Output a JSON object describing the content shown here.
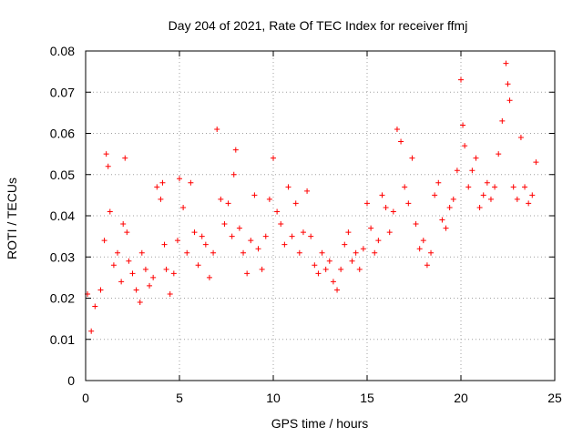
{
  "chart_data": {
    "type": "scatter",
    "title": "Day 204 of 2021, Rate Of TEC Index for receiver ffmj",
    "xlabel": "GPS time / hours",
    "ylabel": "ROTI / TECUs",
    "xlim": [
      0,
      25
    ],
    "ylim": [
      0,
      0.08
    ],
    "x_ticks": [
      "0",
      "5",
      "10",
      "15",
      "20",
      "25"
    ],
    "y_ticks": [
      "0",
      "0.01",
      "0.02",
      "0.03",
      "0.04",
      "0.05",
      "0.06",
      "0.07",
      "0.08"
    ],
    "grid": true,
    "marker": "+",
    "color": "#ff0000",
    "series": [
      {
        "x": [
          0.1,
          0.3,
          0.5,
          0.8,
          1.0,
          1.1,
          1.2,
          1.3,
          1.5,
          1.7,
          1.9,
          2.0,
          2.1,
          2.2,
          2.3,
          2.5,
          2.7,
          2.9,
          3.0,
          3.2,
          3.4,
          3.6,
          3.8,
          4.0,
          4.1,
          4.2,
          4.3,
          4.5,
          4.7,
          4.9,
          5.0,
          5.2,
          5.4,
          5.6,
          5.8,
          6.0,
          6.2,
          6.4,
          6.6,
          6.8,
          7.0,
          7.2,
          7.4,
          7.6,
          7.8,
          7.9,
          8.0,
          8.2,
          8.4,
          8.6,
          8.8,
          9.0,
          9.2,
          9.4,
          9.6,
          9.8,
          10.0,
          10.2,
          10.4,
          10.6,
          10.8,
          11.0,
          11.2,
          11.4,
          11.6,
          11.8,
          12.0,
          12.2,
          12.4,
          12.6,
          12.8,
          13.0,
          13.2,
          13.4,
          13.6,
          13.8,
          14.0,
          14.2,
          14.4,
          14.6,
          14.8,
          15.0,
          15.2,
          15.4,
          15.6,
          15.8,
          16.0,
          16.2,
          16.4,
          16.6,
          16.8,
          17.0,
          17.2,
          17.4,
          17.6,
          17.8,
          18.0,
          18.2,
          18.4,
          18.6,
          18.8,
          19.0,
          19.2,
          19.4,
          19.6,
          19.8,
          20.0,
          20.1,
          20.2,
          20.4,
          20.6,
          20.8,
          21.0,
          21.2,
          21.4,
          21.6,
          21.8,
          22.0,
          22.2,
          22.4,
          22.5,
          22.6,
          22.8,
          23.0,
          23.2,
          23.4,
          23.6,
          23.8,
          24.0
        ],
        "y": [
          0.021,
          0.012,
          0.018,
          0.022,
          0.034,
          0.055,
          0.052,
          0.041,
          0.028,
          0.031,
          0.024,
          0.038,
          0.054,
          0.036,
          0.029,
          0.026,
          0.022,
          0.019,
          0.031,
          0.027,
          0.023,
          0.025,
          0.047,
          0.044,
          0.048,
          0.033,
          0.027,
          0.021,
          0.026,
          0.034,
          0.049,
          0.042,
          0.031,
          0.048,
          0.036,
          0.028,
          0.035,
          0.033,
          0.025,
          0.031,
          0.061,
          0.044,
          0.038,
          0.043,
          0.035,
          0.05,
          0.056,
          0.037,
          0.031,
          0.026,
          0.034,
          0.045,
          0.032,
          0.027,
          0.035,
          0.044,
          0.054,
          0.041,
          0.038,
          0.033,
          0.047,
          0.035,
          0.043,
          0.031,
          0.036,
          0.046,
          0.035,
          0.028,
          0.026,
          0.031,
          0.027,
          0.029,
          0.024,
          0.022,
          0.027,
          0.033,
          0.036,
          0.029,
          0.031,
          0.027,
          0.032,
          0.043,
          0.037,
          0.031,
          0.034,
          0.045,
          0.042,
          0.036,
          0.041,
          0.061,
          0.058,
          0.047,
          0.043,
          0.054,
          0.038,
          0.032,
          0.034,
          0.028,
          0.031,
          0.045,
          0.048,
          0.039,
          0.037,
          0.042,
          0.044,
          0.051,
          0.073,
          0.062,
          0.057,
          0.047,
          0.051,
          0.054,
          0.042,
          0.045,
          0.048,
          0.044,
          0.047,
          0.055,
          0.063,
          0.077,
          0.072,
          0.068,
          0.047,
          0.044,
          0.059,
          0.047,
          0.043,
          0.045,
          0.053
        ]
      }
    ]
  }
}
